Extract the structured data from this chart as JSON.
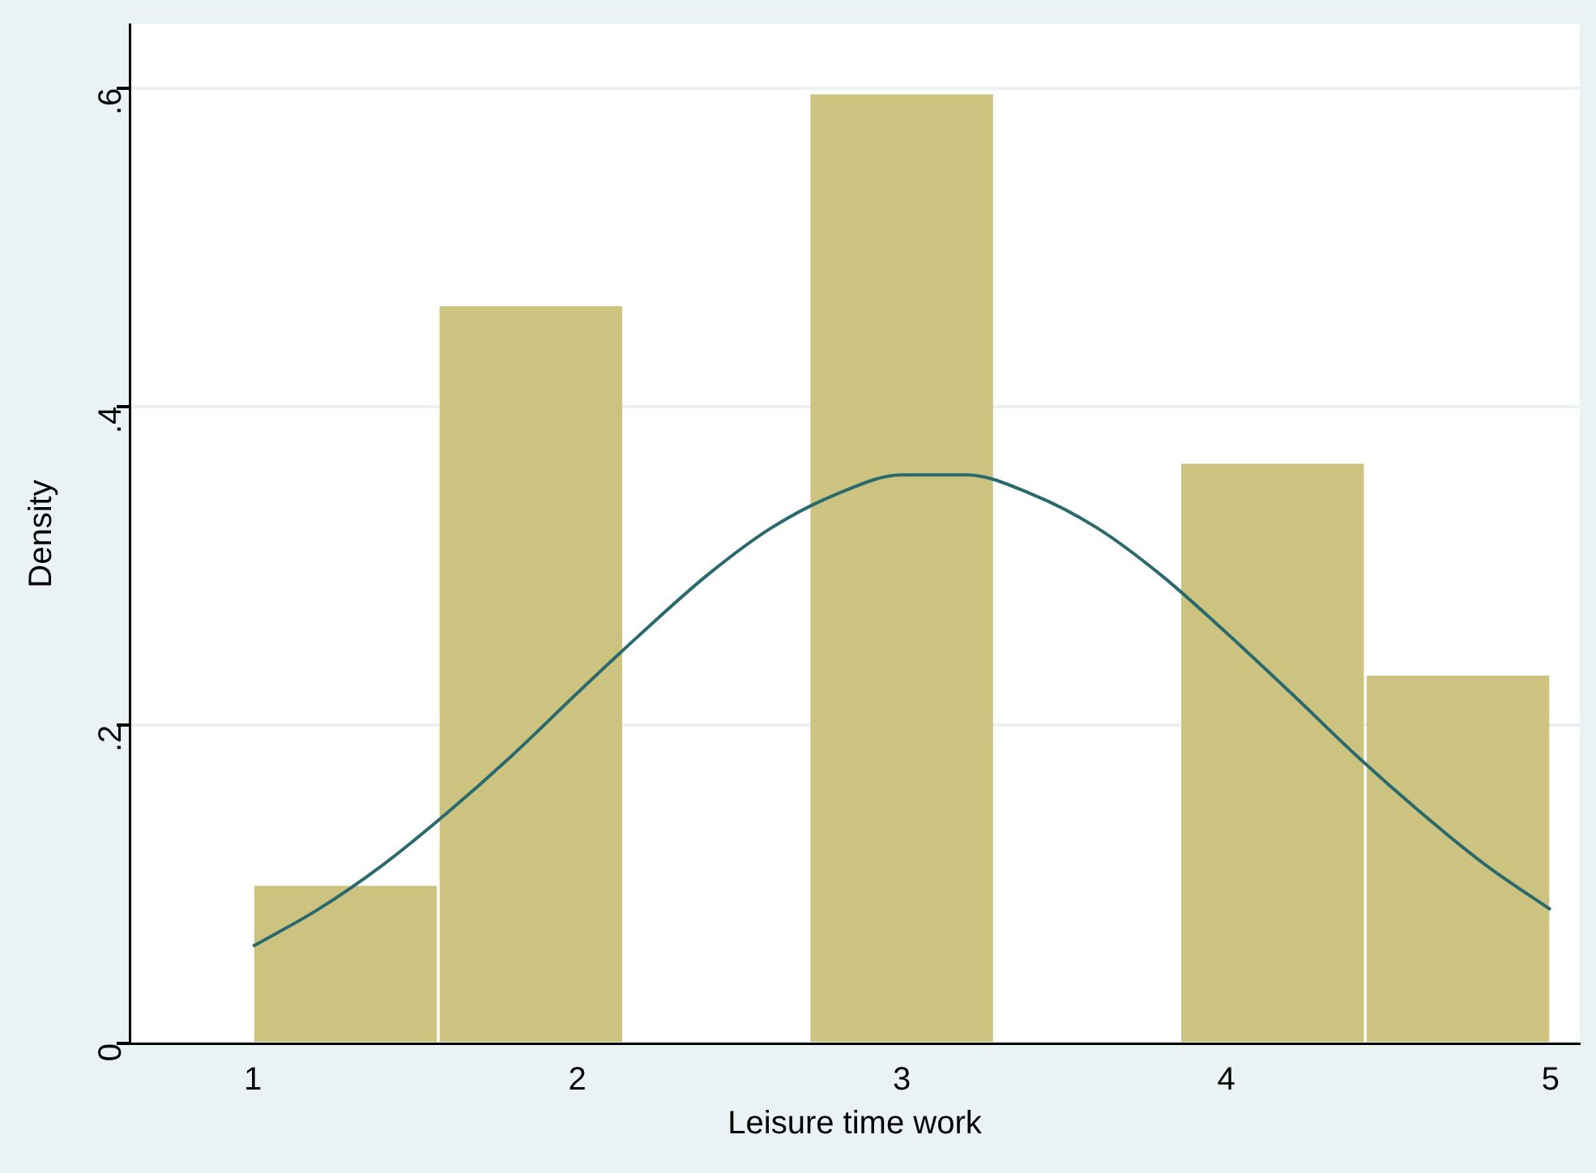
{
  "chart_data": {
    "type": "histogram",
    "xlabel": "Leisure time work",
    "ylabel": "Density",
    "xlim": [
      0.62,
      5.09
    ],
    "xticks": [
      1,
      2,
      3,
      4,
      5
    ],
    "ylim": [
      0,
      0.64
    ],
    "yticks": [
      {
        "value": 0,
        "label": "0"
      },
      {
        "value": 0.2,
        "label": ".2"
      },
      {
        "value": 0.4,
        "label": ".4"
      },
      {
        "value": 0.6,
        "label": ".6"
      }
    ],
    "grid": "y",
    "legend": false,
    "series": [
      {
        "type": "histogram",
        "color": "#cdc381",
        "bins": [
          1,
          1.571,
          2.143,
          2.714,
          3.286,
          3.857,
          4.429,
          5
        ],
        "values": [
          0.099,
          0.463,
          0,
          0.596,
          0,
          0.364,
          0.231
        ]
      },
      {
        "type": "line",
        "color": "#2b6a6c",
        "x": [
          1,
          1.2,
          1.4,
          1.6,
          1.8,
          2,
          2.2,
          2.4,
          2.6,
          2.8,
          3,
          3.2,
          3.4,
          3.6,
          3.8,
          4,
          4.2,
          4.4,
          4.6,
          4.8,
          5
        ],
        "values": [
          0.061,
          0.084,
          0.112,
          0.145,
          0.181,
          0.22,
          0.258,
          0.294,
          0.324,
          0.345,
          0.357,
          0.357,
          0.345,
          0.324,
          0.294,
          0.258,
          0.22,
          0.181,
          0.145,
          0.112,
          0.084
        ]
      }
    ]
  }
}
